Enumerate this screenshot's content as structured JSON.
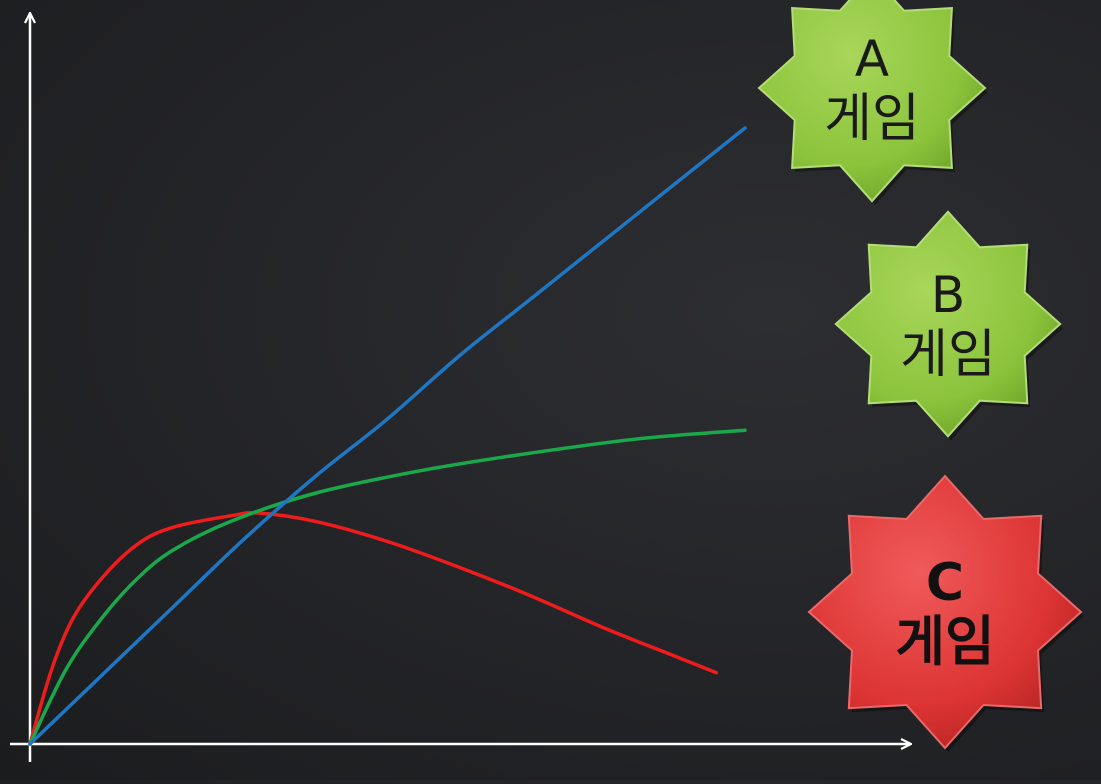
{
  "chart_data": {
    "type": "line",
    "title": "",
    "xlabel": "",
    "ylabel": "",
    "grid": false,
    "legend": "right",
    "series": [
      {
        "name": "A 게임",
        "color": "#1f77c4",
        "points": [
          [
            0,
            0
          ],
          [
            1,
            12
          ],
          [
            2,
            24
          ],
          [
            3,
            36
          ],
          [
            4,
            47
          ],
          [
            5,
            57
          ],
          [
            6,
            68
          ],
          [
            7,
            78
          ],
          [
            8,
            88
          ],
          [
            9,
            98
          ],
          [
            10,
            108
          ]
        ]
      },
      {
        "name": "B 게임",
        "color": "#1aa84a",
        "points": [
          [
            0,
            0
          ],
          [
            0.5,
            13
          ],
          [
            1,
            22
          ],
          [
            1.5,
            29
          ],
          [
            2,
            34
          ],
          [
            2.8,
            39
          ],
          [
            4,
            44
          ],
          [
            5.5,
            48
          ],
          [
            7,
            51
          ],
          [
            8.5,
            53.5
          ],
          [
            10,
            55
          ]
        ]
      },
      {
        "name": "C 게임",
        "color": "#ee1c1c",
        "points": [
          [
            0,
            0
          ],
          [
            0.3,
            13
          ],
          [
            0.6,
            22
          ],
          [
            1,
            29
          ],
          [
            1.5,
            35
          ],
          [
            2,
            38
          ],
          [
            2.8,
            40
          ],
          [
            3.2,
            40.5
          ],
          [
            4,
            39
          ],
          [
            5,
            35.5
          ],
          [
            6,
            31
          ],
          [
            7,
            26
          ],
          [
            8,
            20.5
          ],
          [
            9,
            15.5
          ],
          [
            9.6,
            12.5
          ]
        ]
      }
    ],
    "legend_badges": [
      {
        "line1": "A",
        "line2": "게임",
        "fill": "#8cc43c",
        "bold": false
      },
      {
        "line1": "B",
        "line2": "게임",
        "fill": "#8cc43c",
        "bold": false
      },
      {
        "line1": "C",
        "line2": "게임",
        "fill": "#dd3434",
        "bold": true
      }
    ]
  }
}
